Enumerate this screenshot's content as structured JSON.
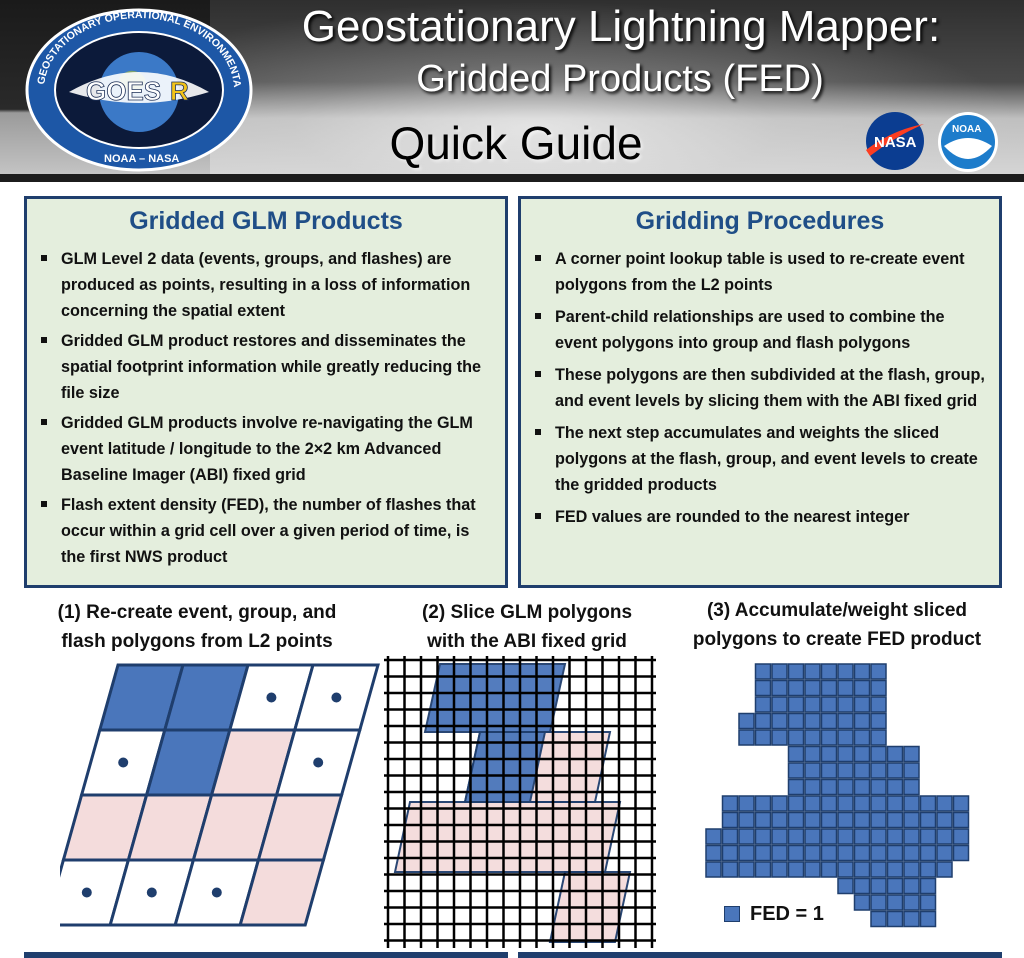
{
  "header": {
    "title_line1": "Geostationary Lightning Mapper:",
    "title_line2": "Gridded Products (FED)",
    "subtitle": "Quick Guide",
    "goes_logo": {
      "ring_text": "GEOSTATIONARY OPERATIONAL ENVIRONMENTAL SATELLITE-R SERIES",
      "center_text": "GOES",
      "center_letter": "R",
      "bottom_text": "NOAA – NASA"
    },
    "nasa_logo_text": "NASA",
    "noaa_logo_text": "NOAA"
  },
  "left_box": {
    "title": "Gridded GLM Products",
    "bullets": [
      "GLM Level 2 data (events, groups, and flashes) are produced as points, resulting in a loss of information concerning the spatial extent",
      "Gridded GLM product restores and disseminates the spatial footprint information while greatly reducing the file size",
      "Gridded GLM products involve re-navigating the GLM event latitude / longitude to the 2×2 km Advanced Baseline Imager (ABI) fixed grid",
      "Flash extent density (FED), the number of flashes that occur within a grid cell over a given period of time, is the first NWS product"
    ]
  },
  "right_box": {
    "title": "Gridding Procedures",
    "bullets": [
      "A corner point lookup table is used to re-create event polygons from the L2 points",
      "Parent-child relationships are used to combine the event polygons into group and flash polygons",
      "These polygons are then subdivided at the flash, group, and event levels by slicing them with the ABI fixed grid",
      "The next step accumulates and weights the sliced polygons at the flash, group, and event levels to create the gridded products",
      "FED values are rounded to the nearest integer"
    ]
  },
  "steps": {
    "step1_line1": "(1) Re-create event, group, and",
    "step1_line2": "flash polygons from L2 points",
    "step2_line1": "(2) Slice GLM polygons",
    "step2_line2": "with the ABI fixed grid",
    "step3_line1": "(3) Accumulate/weight sliced",
    "step3_line2": "polygons to create FED product"
  },
  "legend": {
    "fed_label": "FED = 1"
  },
  "colors": {
    "event_blue": "#4a76bb",
    "event_pink": "#f4dcdc",
    "border_navy": "#1f3e6d",
    "box_fill": "#e4eedd",
    "title_blue": "#1f4e87"
  }
}
